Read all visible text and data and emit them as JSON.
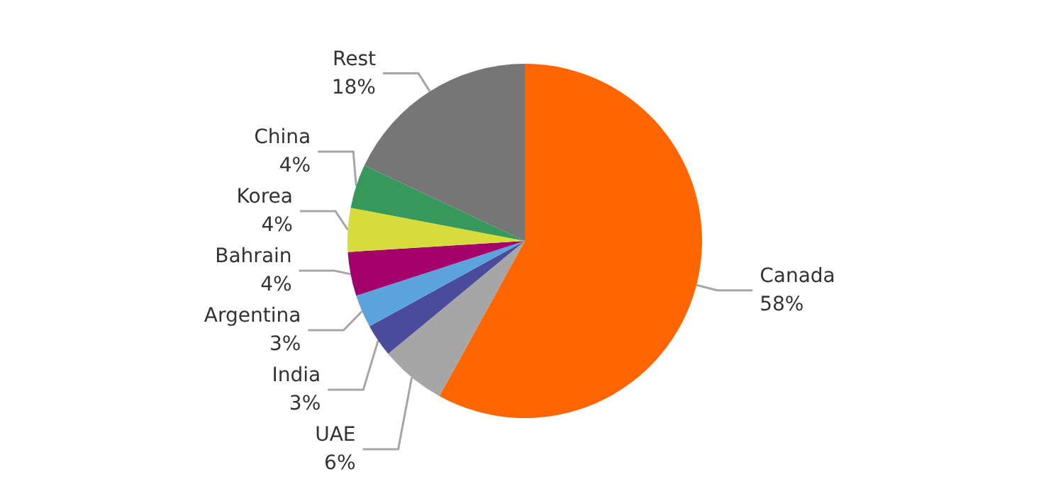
{
  "chart_data": {
    "type": "pie",
    "categories": [
      "Canada",
      "UAE",
      "India",
      "Argentina",
      "Bahrain",
      "Korea",
      "China",
      "Rest"
    ],
    "values": [
      58,
      6,
      3,
      3,
      4,
      4,
      4,
      18
    ],
    "colors": [
      "#ff6600",
      "#a6a6a6",
      "#4b4b9b",
      "#5ba3dc",
      "#a3006b",
      "#d5dc3c",
      "#36985a",
      "#767676"
    ],
    "value_labels": [
      "58%",
      "6%",
      "3%",
      "3%",
      "4%",
      "4%",
      "4%",
      "18%"
    ],
    "legend": false
  }
}
